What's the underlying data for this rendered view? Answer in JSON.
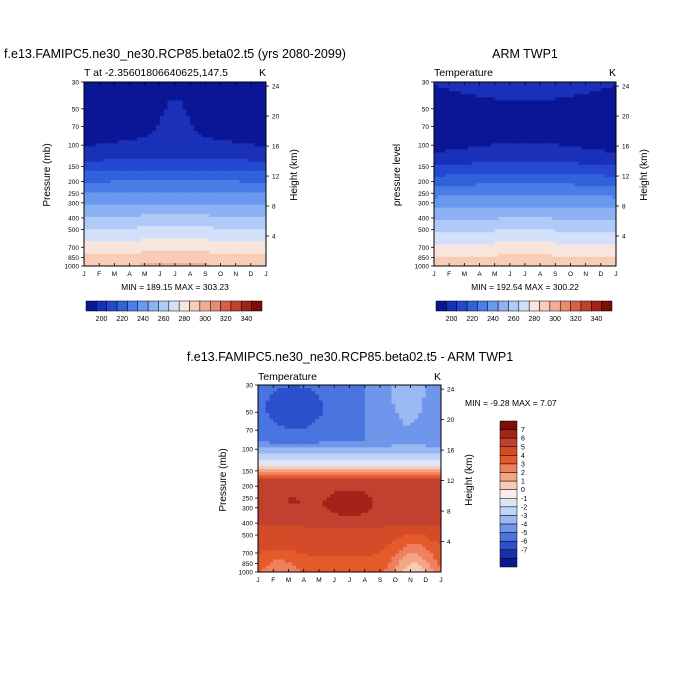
{
  "chart_data": [
    {
      "type": "heatmap",
      "title": "f.e13.FAMIPC5.ne30_ne30.RCP85.beta02.t5 (yrs 2080-2099)",
      "subtitle_left": "T at -2.35601806640625,147.5",
      "subtitle_right": "K",
      "ylabel": "Pressure (mb)",
      "ylabel_right": "Height (km)",
      "stats": "MIN = 189.15   MAX = 303.23",
      "months": [
        "J",
        "F",
        "M",
        "A",
        "M",
        "J",
        "J",
        "A",
        "S",
        "O",
        "N",
        "D",
        "J"
      ],
      "pressure_ticks": [
        "30",
        "50",
        "70",
        "100",
        "150",
        "200",
        "250",
        "300",
        "400",
        "500",
        "700",
        "850",
        "1000"
      ],
      "height_ticks": [
        "24",
        "20",
        "16",
        "12",
        "8",
        "4"
      ],
      "colorbar_labels": [
        "200",
        "220",
        "240",
        "260",
        "280",
        "300",
        "320",
        "340"
      ],
      "field_id": "model_t"
    },
    {
      "type": "heatmap",
      "title": "ARM TWP1",
      "subtitle_left": "Temperature",
      "subtitle_right": "K",
      "ylabel": "pressure level",
      "ylabel_right": "Height (km)",
      "stats": "MIN = 192.54   MAX = 300.22",
      "months": [
        "J",
        "F",
        "M",
        "A",
        "M",
        "J",
        "J",
        "A",
        "S",
        "O",
        "N",
        "D",
        "J"
      ],
      "pressure_ticks": [
        "30",
        "50",
        "70",
        "100",
        "150",
        "200",
        "250",
        "300",
        "400",
        "500",
        "700",
        "850",
        "1000"
      ],
      "height_ticks": [
        "24",
        "20",
        "16",
        "12",
        "8",
        "4"
      ],
      "colorbar_labels": [
        "200",
        "220",
        "240",
        "260",
        "280",
        "300",
        "320",
        "340"
      ],
      "field_id": "obs_t"
    },
    {
      "type": "heatmap",
      "title": "f.e13.FAMIPC5.ne30_ne30.RCP85.beta02.t5 - ARM TWP1",
      "subtitle_left": "Temperature",
      "subtitle_right": "K",
      "ylabel": "Pressure (mb)",
      "ylabel_right": "Height (km)",
      "stats": "MIN =  -9.28   MAX =   7.07",
      "months": [
        "J",
        "F",
        "M",
        "A",
        "M",
        "J",
        "J",
        "A",
        "S",
        "O",
        "N",
        "D",
        "J"
      ],
      "pressure_ticks": [
        "30",
        "50",
        "70",
        "100",
        "150",
        "200",
        "250",
        "300",
        "400",
        "500",
        "700",
        "850",
        "1000"
      ],
      "height_ticks": [
        "24",
        "20",
        "16",
        "12",
        "8",
        "4"
      ],
      "colorbar_labels": [
        "7",
        "6",
        "5",
        "4",
        "3",
        "2",
        "1",
        "0",
        "-1",
        "-2",
        "-3",
        "-4",
        "-5",
        "-6",
        "-7"
      ],
      "field_id": "diff_t"
    }
  ],
  "colors": {
    "abs_scale": [
      "#0a1696",
      "#1a30b8",
      "#2448d0",
      "#3062dc",
      "#4a7de6",
      "#6a98ee",
      "#8cb2f3",
      "#b0caf7",
      "#d2e0fb",
      "#f8e6dc",
      "#f7cdb8",
      "#f2ae92",
      "#e98c6e",
      "#d8604a",
      "#c2402e",
      "#a42218",
      "#7e0c08"
    ],
    "diff_scale": [
      "#7e0c08",
      "#a42218",
      "#c2402e",
      "#d44b28",
      "#e45a2a",
      "#ee8060",
      "#f6a486",
      "#f8ccb4",
      "#fbecec",
      "#dce6f8",
      "#c0d4f6",
      "#9ab8f2",
      "#6e96ea",
      "#4a74e0",
      "#2c50cc",
      "#1a2eaa",
      "#0c1890"
    ]
  }
}
